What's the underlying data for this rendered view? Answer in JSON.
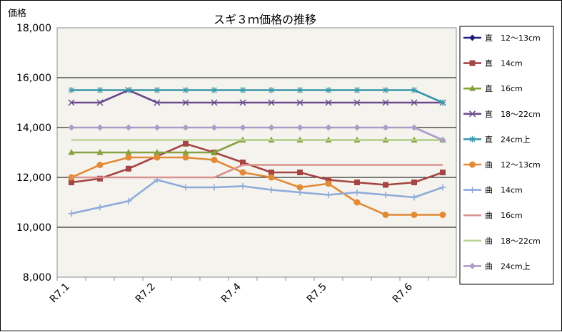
{
  "chart_data": {
    "type": "line",
    "title": "スギ３ｍ価格の推移",
    "ylabel": "価格",
    "xlabel": "",
    "ylim": [
      8000,
      18000
    ],
    "yticks": [
      "8,000",
      "10,000",
      "12,000",
      "14,000",
      "16,000",
      "18,000"
    ],
    "grid": "horizontal major",
    "legend_position": "right",
    "x_ticks": [
      {
        "label": "R7.1",
        "index": 0
      },
      {
        "label": "R7.2",
        "index": 3
      },
      {
        "label": "R7.4",
        "index": 6
      },
      {
        "label": "R7.5",
        "index": 9
      },
      {
        "label": "R7.6",
        "index": 12
      }
    ],
    "point_count": 14,
    "series": [
      {
        "name": "直　12～13cm",
        "color": "#1f1f7a",
        "marker": "diamond",
        "values": [
          null,
          null,
          null,
          null,
          null,
          null,
          null,
          null,
          null,
          null,
          null,
          null,
          null,
          null
        ]
      },
      {
        "name": "直　14cm",
        "color": "#a44543",
        "marker": "square",
        "values": [
          11800,
          11950,
          12350,
          12850,
          13350,
          13000,
          12600,
          12200,
          12200,
          11900,
          11800,
          11700,
          11800,
          12200
        ]
      },
      {
        "name": "直　16cm",
        "color": "#86a23f",
        "marker": "triangle",
        "values": [
          13000,
          13000,
          13000,
          13000,
          13000,
          13000,
          13500,
          13500,
          13500,
          13500,
          13500,
          13500,
          13500,
          13500
        ]
      },
      {
        "name": "直　18～22cm",
        "color": "#6b4a8c",
        "marker": "x",
        "values": [
          15000,
          15000,
          15500,
          15000,
          15000,
          15000,
          15000,
          15000,
          15000,
          15000,
          15000,
          15000,
          15000,
          15000
        ]
      },
      {
        "name": "直　24cm上",
        "color": "#3a96a8",
        "marker": "star",
        "values": [
          15500,
          15500,
          15500,
          15500,
          15500,
          15500,
          15500,
          15500,
          15500,
          15500,
          15500,
          15500,
          15500,
          15000
        ]
      },
      {
        "name": "曲　12～13cm",
        "color": "#e28a36",
        "marker": "circle",
        "values": [
          12000,
          12500,
          12800,
          12800,
          12800,
          12700,
          12200,
          12000,
          11600,
          11750,
          11000,
          10500,
          10500,
          10500
        ]
      },
      {
        "name": "曲　14cm",
        "color": "#8eaad8",
        "marker": "plus",
        "values": [
          10550,
          10800,
          11050,
          11900,
          11600,
          11600,
          11650,
          11500,
          11400,
          11300,
          11400,
          11300,
          11200,
          11600
        ]
      },
      {
        "name": "曲　16cm",
        "color": "#d9928f",
        "marker": "none",
        "values": [
          12000,
          12000,
          12000,
          12000,
          12000,
          12000,
          12500,
          12500,
          12500,
          12500,
          12500,
          12500,
          12500,
          12500
        ]
      },
      {
        "name": "曲　18～22cm",
        "color": "#bcd395",
        "marker": "none",
        "values": [
          13500,
          13500,
          13500,
          13500,
          13500,
          13500,
          13500,
          13500,
          13500,
          13500,
          13500,
          13500,
          13500,
          13500
        ]
      },
      {
        "name": "曲　24cm上",
        "color": "#ab9dc8",
        "marker": "diamond",
        "values": [
          14000,
          14000,
          14000,
          14000,
          14000,
          14000,
          14000,
          14000,
          14000,
          14000,
          14000,
          14000,
          14000,
          13500
        ]
      }
    ]
  }
}
